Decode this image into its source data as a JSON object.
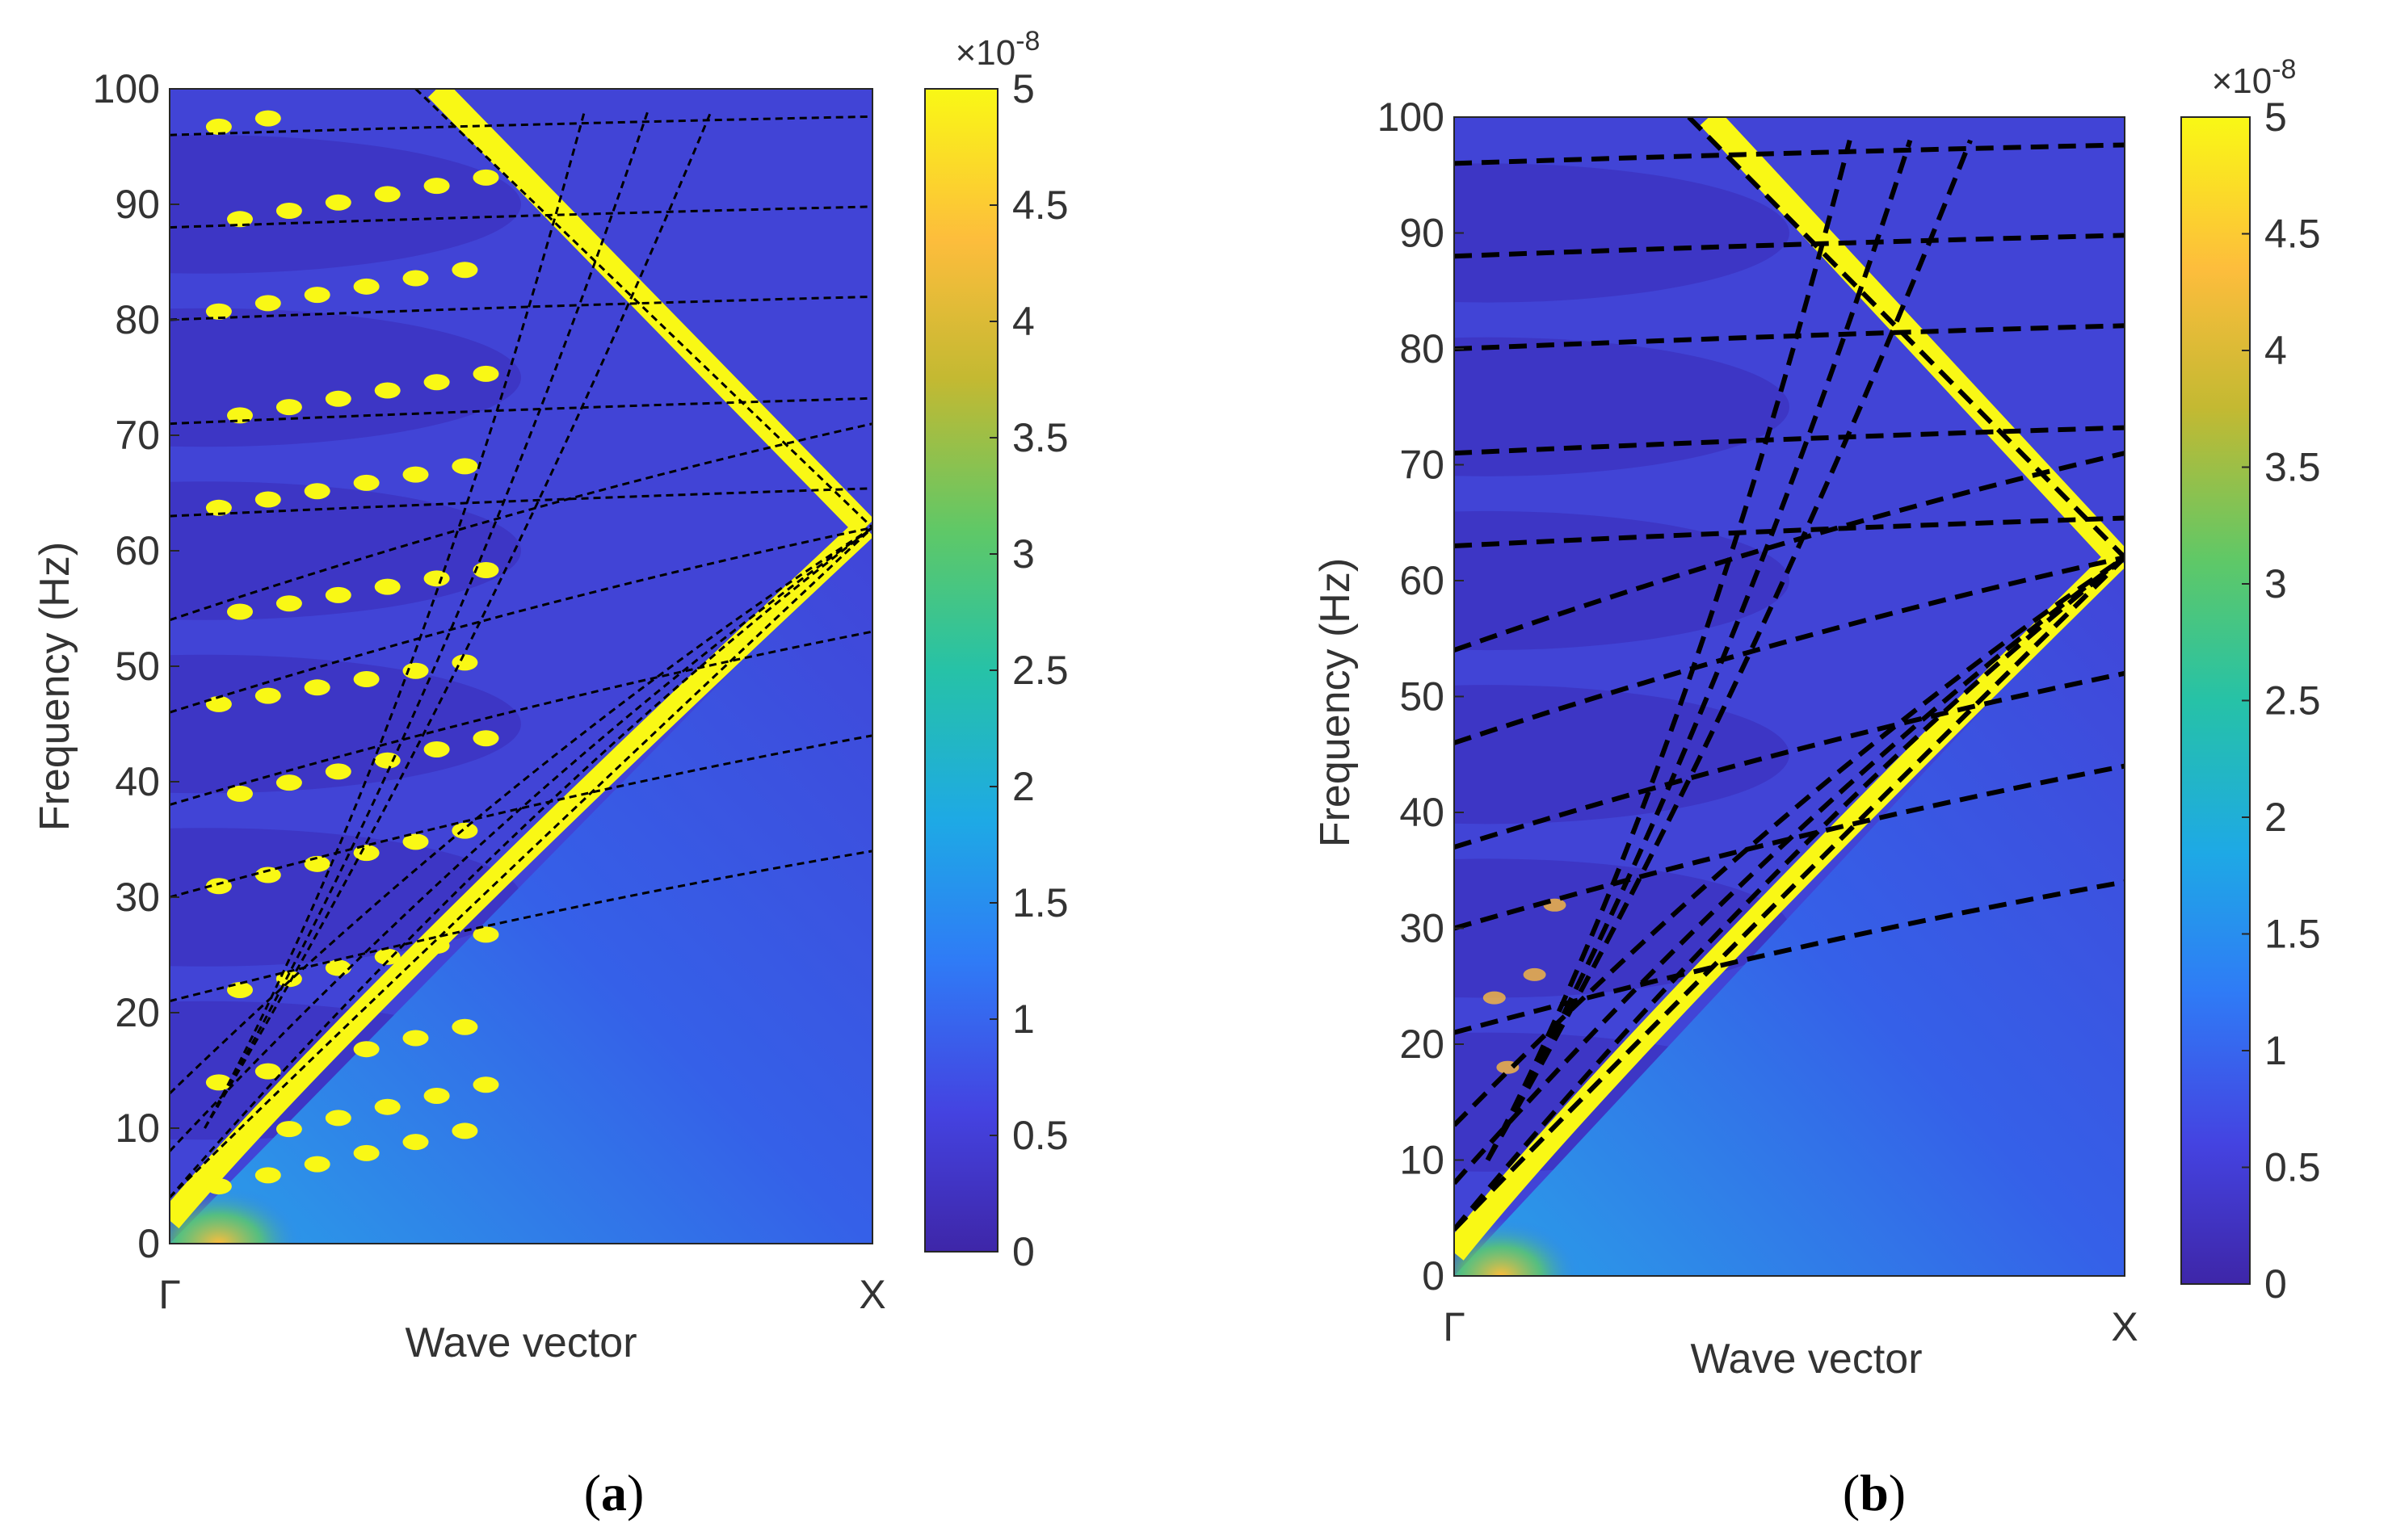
{
  "chart_data": [
    {
      "type": "heatmap",
      "panel_label": "a",
      "xlabel": "Wave vector",
      "ylabel": "Frequency (Hz)",
      "x_ticks": [
        "Γ",
        "X"
      ],
      "ylim": [
        0,
        100
      ],
      "y_ticks": [
        "0",
        "10",
        "20",
        "30",
        "40",
        "50",
        "60",
        "70",
        "80",
        "90",
        "100"
      ],
      "colorbar": {
        "range": [
          0,
          5
        ],
        "exponent": "×10",
        "exponent_power": "-8",
        "ticks": [
          "0",
          "0.5",
          "1",
          "1.5",
          "2",
          "2.5",
          "3",
          "3.5",
          "4",
          "4.5",
          "5"
        ]
      },
      "dispersion_curves_at_gamma": [
        4,
        8,
        13,
        21,
        30,
        38,
        46,
        54,
        63,
        71,
        80,
        88,
        96
      ],
      "crossing_point_X_hz": 62,
      "line_style": "dashed-thin"
    },
    {
      "type": "heatmap",
      "panel_label": "b",
      "xlabel": "Wave vector",
      "ylabel": "Frequency (Hz)",
      "x_ticks": [
        "Γ",
        "X"
      ],
      "ylim": [
        0,
        100
      ],
      "y_ticks": [
        "0",
        "10",
        "20",
        "30",
        "40",
        "50",
        "60",
        "70",
        "80",
        "90",
        "100"
      ],
      "colorbar": {
        "range": [
          0,
          5
        ],
        "exponent": "×10",
        "exponent_power": "-8",
        "ticks": [
          "0",
          "0.5",
          "1",
          "1.5",
          "2",
          "2.5",
          "3",
          "3.5",
          "4",
          "4.5",
          "5"
        ]
      },
      "dispersion_curves_at_gamma": [
        4,
        8,
        13,
        21,
        30,
        37,
        46,
        54,
        63,
        71,
        80,
        88,
        96
      ],
      "crossing_point_X_hz": 62,
      "line_style": "dashed-thick"
    }
  ],
  "colormap": {
    "name": "parula",
    "stops": [
      "#3e26a8",
      "#4443e1",
      "#2f7bf6",
      "#1ea9e5",
      "#26c2a7",
      "#5fc867",
      "#c3b932",
      "#fdbd3c",
      "#f9f815"
    ]
  },
  "captions": {
    "a": "a",
    "b": "b"
  }
}
